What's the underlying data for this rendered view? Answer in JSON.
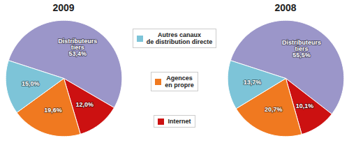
{
  "chart_data": [
    {
      "type": "pie",
      "title": "2009",
      "categories": [
        "Distributeurs\ntiers",
        "Internet",
        "Agences\nen propre",
        "Autres canaux\nde distribution directe"
      ],
      "values": [
        53.4,
        12.0,
        19.6,
        15.0
      ],
      "value_labels": [
        "53,4%",
        "12,0%",
        "19,6%",
        "15,0%"
      ],
      "colors": [
        "#9B96C9",
        "#CC1111",
        "#F07920",
        "#7DC4D8"
      ],
      "data_labels": true
    },
    {
      "type": "pie",
      "title": "2008",
      "categories": [
        "Distributeurs\ntiers",
        "Internet",
        "Agences\nen propre",
        "Autres canaux\nde distribution directe"
      ],
      "values": [
        55.5,
        10.1,
        20.7,
        13.7
      ],
      "value_labels": [
        "55,5%",
        "10,1%",
        "20,7%",
        "13,7%"
      ],
      "colors": [
        "#9B96C9",
        "#CC1111",
        "#F07920",
        "#7DC4D8"
      ],
      "data_labels": true
    }
  ]
}
